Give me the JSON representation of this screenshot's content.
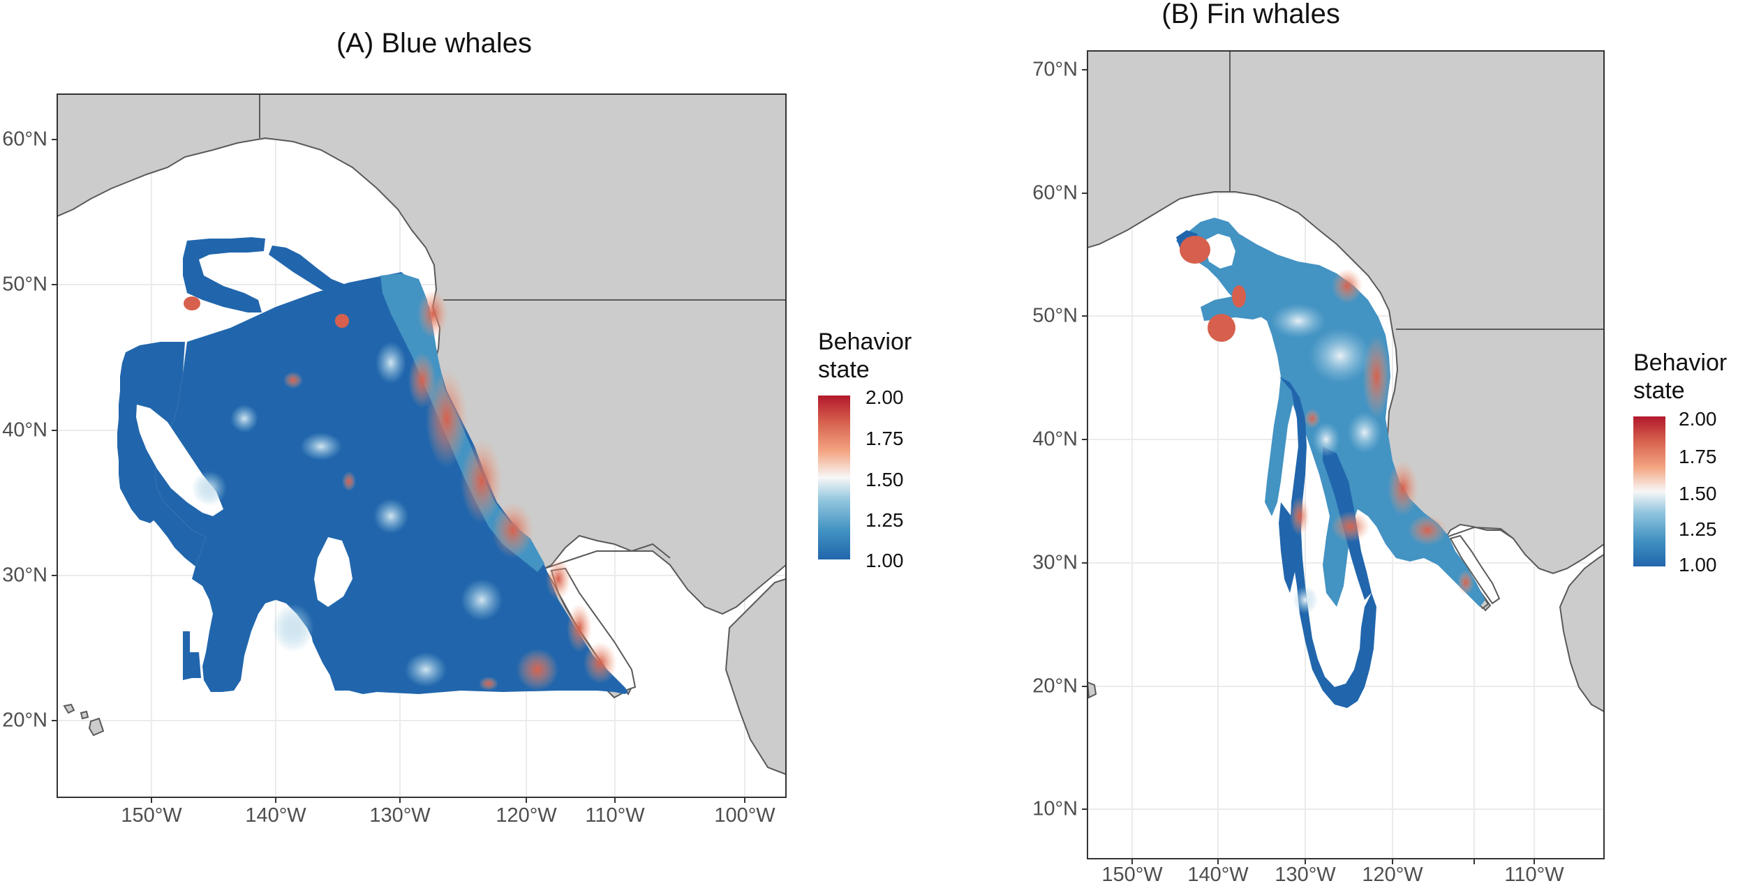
{
  "panels": [
    {
      "id": "A",
      "title": "(A) Blue whales",
      "y_labels": [
        "60°N",
        "50°N",
        "40°N",
        "30°N",
        "20°N"
      ],
      "x_labels": [
        "150°W",
        "140°W",
        "130°W",
        "120°W",
        "110°W",
        "100°W"
      ],
      "lat_range": [
        14.5,
        63.5
      ],
      "lon_range": [
        -158,
        -104
      ],
      "legend": {
        "title_line1": "Behavior",
        "title_line2": "state",
        "labels": [
          "2.00",
          "1.75",
          "1.50",
          "1.25",
          "1.00"
        ]
      }
    },
    {
      "id": "B",
      "title": "(B) Fin whales",
      "y_labels": [
        "70°N",
        "60°N",
        "50°N",
        "40°N",
        "30°N",
        "20°N",
        "10°N"
      ],
      "x_labels": [
        "150°W",
        "140°W",
        "130°W",
        "120°W",
        "110°W"
      ],
      "lat_range": [
        5,
        71.5
      ],
      "lon_range": [
        -155.5,
        -106.5
      ],
      "legend": {
        "title_line1": "Behavior",
        "title_line2": "state",
        "labels": [
          "2.00",
          "1.75",
          "1.50",
          "1.25",
          "1.00"
        ]
      }
    }
  ],
  "colors": {
    "land": "#cccccc",
    "land_border": "#595959",
    "ocean": "#ffffff",
    "grid": "#ebebeb",
    "low_state": "#2166ac",
    "mid_state": "#f7f7f7",
    "high_state": "#b2182b"
  }
}
